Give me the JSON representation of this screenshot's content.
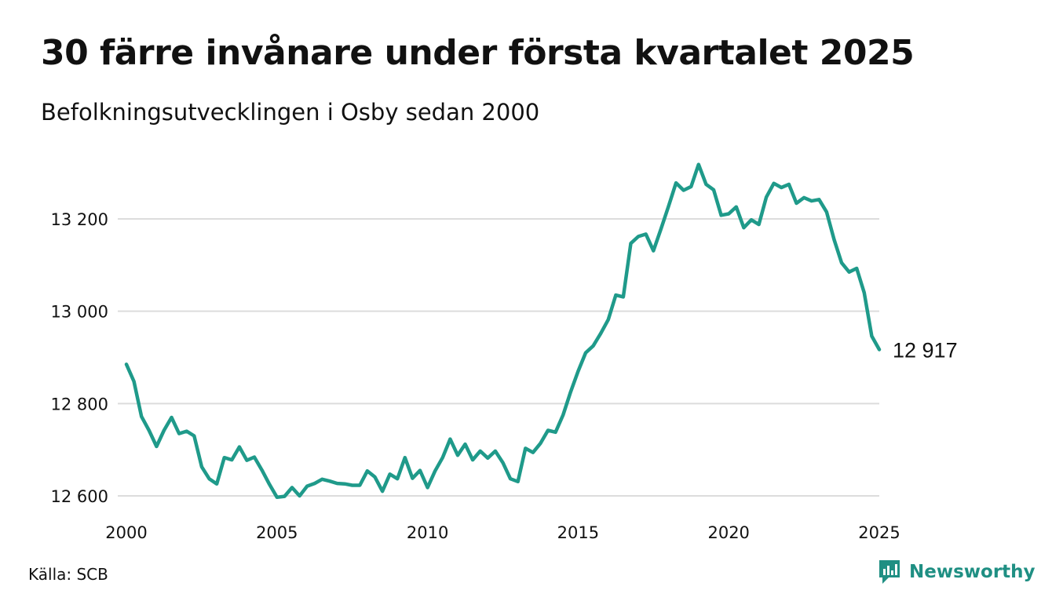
{
  "title": "30 färre invånare under första kvartalet 2025",
  "subtitle": "Befolkningsutvecklingen i Osby sedan 2000",
  "source": "Källa: SCB",
  "brand": {
    "name": "Newsworthy",
    "icon": "newsworthy-logo-icon",
    "color": "#1f8f83"
  },
  "end_label": "12 917",
  "chart_data": {
    "type": "line",
    "color": "#1f9a8a",
    "grid": "horizontal",
    "xlim": [
      2000,
      2025
    ],
    "ylim": [
      12600,
      13300
    ],
    "x_ticks": [
      2000,
      2005,
      2010,
      2015,
      2020,
      2025
    ],
    "x_tick_labels": [
      "2000",
      "2005",
      "2010",
      "2015",
      "2020",
      "2025"
    ],
    "y_ticks": [
      12600,
      12800,
      13000,
      13200
    ],
    "y_tick_labels": [
      "12 600",
      "12 800",
      "13 000",
      "13 200"
    ],
    "series": [
      {
        "x_start": 2000,
        "x_step": 0.25,
        "values": [
          12885,
          12848,
          12772,
          12742,
          12707,
          12742,
          12770,
          12735,
          12740,
          12730,
          12663,
          12637,
          12626,
          12683,
          12678,
          12706,
          12677,
          12684,
          12656,
          12625,
          12597,
          12599,
          12618,
          12600,
          12621,
          12627,
          12636,
          12632,
          12627,
          12626,
          12623,
          12623,
          12654,
          12641,
          12610,
          12647,
          12637,
          12683,
          12638,
          12655,
          12618,
          12654,
          12683,
          12723,
          12688,
          12712,
          12678,
          12697,
          12682,
          12697,
          12672,
          12637,
          12631,
          12703,
          12694,
          12714,
          12742,
          12738,
          12775,
          12825,
          12870,
          12910,
          12925,
          12952,
          12982,
          13035,
          13031,
          13147,
          13162,
          13167,
          13131,
          13178,
          13227,
          13278,
          13262,
          13270,
          13318,
          13275,
          13263,
          13208,
          13211,
          13226,
          13181,
          13198,
          13188,
          13247,
          13277,
          13268,
          13275,
          13234,
          13246,
          13239,
          13242,
          13215,
          13155,
          13105,
          13085,
          13093,
          13040,
          12946,
          12917
        ]
      }
    ]
  }
}
